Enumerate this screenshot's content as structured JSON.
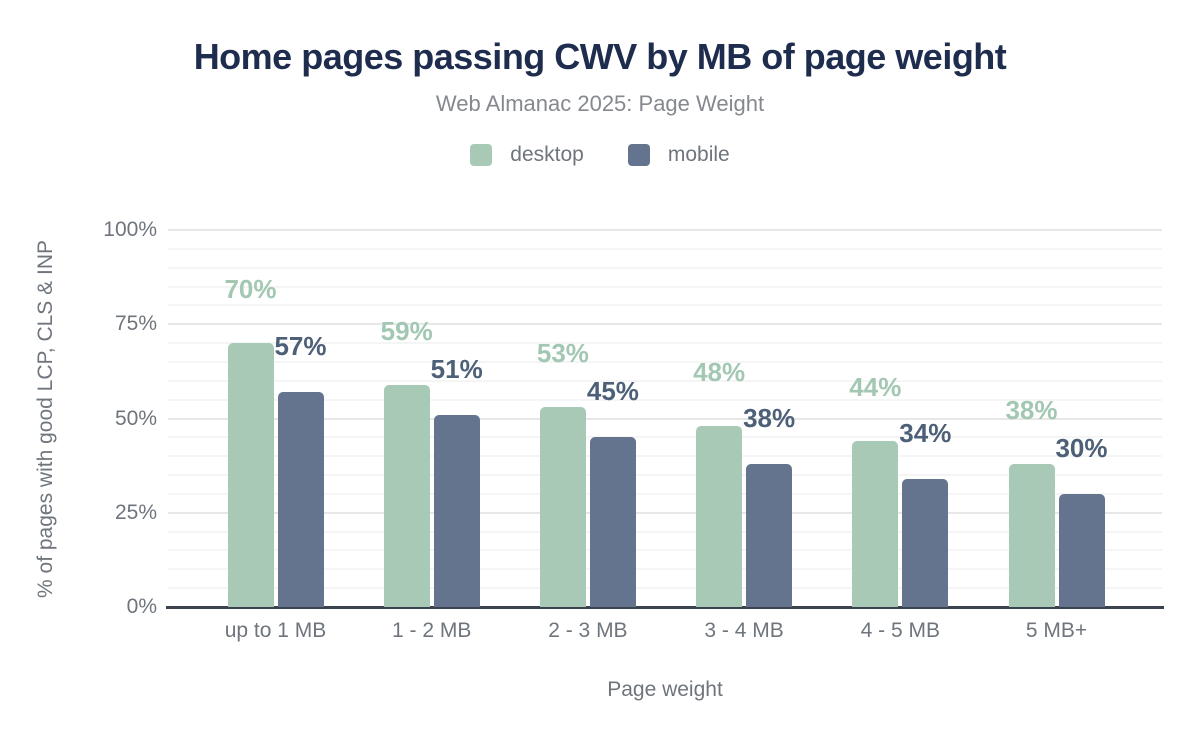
{
  "chart_data": {
    "type": "bar",
    "title": "Home pages passing CWV by MB of page weight",
    "subtitle": "Web Almanac 2025: Page Weight",
    "xlabel": "Page weight",
    "ylabel": "% of pages with good LCP, CLS & INP",
    "ylim": [
      0,
      100
    ],
    "grid": "horizontal major every 25%, minor every 5%",
    "legend_position": "top-center",
    "value_suffix": "%",
    "categories": [
      "up to 1 MB",
      "1 - 2 MB",
      "2 - 3 MB",
      "3 - 4 MB",
      "4 - 5 MB",
      "5 MB+"
    ],
    "series": [
      {
        "name": "desktop",
        "color": "#a7c9b6",
        "label_color": "#a2c7b2",
        "values": [
          70,
          59,
          53,
          48,
          44,
          38
        ]
      },
      {
        "name": "mobile",
        "color": "#64748e",
        "label_color": "#4d6078",
        "values": [
          57,
          51,
          45,
          38,
          34,
          30
        ]
      }
    ],
    "y_ticks": [
      {
        "label": "0%",
        "value": 0
      },
      {
        "label": "25%",
        "value": 25
      },
      {
        "label": "50%",
        "value": 50
      },
      {
        "label": "75%",
        "value": 75
      },
      {
        "label": "100%",
        "value": 100
      }
    ]
  },
  "colors": {
    "background": "#ffffff",
    "title": "#1e2c4e",
    "subtitle": "#85898f",
    "axis_text": "#6f757d",
    "baseline": "#39424d",
    "grid_major": "#e7e7e7",
    "grid_minor": "#f5f5f5"
  }
}
